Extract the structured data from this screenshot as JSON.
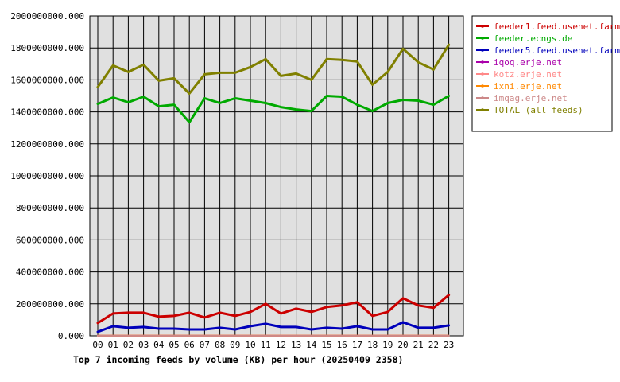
{
  "chart_data": {
    "type": "line",
    "title": "Top 7 incoming feeds by volume (KB) per hour (20250409 2358)",
    "xlabel": "",
    "ylabel": "",
    "grid": true,
    "legend_position": "top-right",
    "ylim": [
      0,
      2000000000
    ],
    "yticks": [
      "0.000",
      "200000000.000",
      "400000000.000",
      "600000000.000",
      "800000000.000",
      "1000000000.000",
      "1200000000.000",
      "1400000000.000",
      "1600000000.000",
      "1800000000.000",
      "2000000000.000"
    ],
    "x": [
      "00",
      "01",
      "02",
      "03",
      "04",
      "05",
      "06",
      "07",
      "08",
      "09",
      "10",
      "11",
      "12",
      "13",
      "14",
      "15",
      "16",
      "17",
      "18",
      "19",
      "20",
      "21",
      "22",
      "23"
    ],
    "series": [
      {
        "name": "feeder1.feed.usenet.farm",
        "color": "#cc0000",
        "values": [
          80000000,
          140000000,
          145000000,
          145000000,
          120000000,
          125000000,
          145000000,
          115000000,
          145000000,
          125000000,
          150000000,
          200000000,
          140000000,
          170000000,
          150000000,
          180000000,
          190000000,
          210000000,
          125000000,
          150000000,
          235000000,
          190000000,
          175000000,
          255000000
        ]
      },
      {
        "name": "feeder.ecngs.de",
        "color": "#00aa00",
        "values": [
          1450000000,
          1490000000,
          1460000000,
          1495000000,
          1435000000,
          1445000000,
          1335000000,
          1485000000,
          1455000000,
          1485000000,
          1470000000,
          1455000000,
          1430000000,
          1415000000,
          1405000000,
          1500000000,
          1495000000,
          1445000000,
          1405000000,
          1455000000,
          1475000000,
          1470000000,
          1445000000,
          1500000000
        ]
      },
      {
        "name": "feeder5.feed.usenet.farm",
        "color": "#0000bb",
        "values": [
          25000000,
          60000000,
          50000000,
          55000000,
          45000000,
          45000000,
          40000000,
          40000000,
          50000000,
          40000000,
          60000000,
          75000000,
          55000000,
          55000000,
          40000000,
          50000000,
          45000000,
          60000000,
          40000000,
          40000000,
          85000000,
          50000000,
          50000000,
          65000000
        ]
      },
      {
        "name": "iqoq.erje.net",
        "color": "#aa00aa",
        "values": [
          1500000,
          1500000,
          1500000,
          1500000,
          1500000,
          1500000,
          1500000,
          1500000,
          1500000,
          1500000,
          1500000,
          1500000,
          1500000,
          1500000,
          1500000,
          1500000,
          1500000,
          1500000,
          1500000,
          1500000,
          1500000,
          1500000,
          1500000,
          1500000
        ]
      },
      {
        "name": "kotz.erje.net",
        "color": "#ff8888",
        "values": [
          1000000,
          1000000,
          1000000,
          1000000,
          1000000,
          1000000,
          1000000,
          1000000,
          1000000,
          1000000,
          1000000,
          1000000,
          1000000,
          1000000,
          1000000,
          1000000,
          1000000,
          1000000,
          1000000,
          1000000,
          1000000,
          1000000,
          1000000,
          1000000
        ]
      },
      {
        "name": "ixni.erje.net",
        "color": "#ff8800",
        "values": [
          1000000,
          1000000,
          1000000,
          1000000,
          1000000,
          1000000,
          1000000,
          1000000,
          1000000,
          1000000,
          1000000,
          1000000,
          1000000,
          1000000,
          1000000,
          1000000,
          1000000,
          1000000,
          1000000,
          1000000,
          1000000,
          1000000,
          1000000,
          1000000
        ]
      },
      {
        "name": "imqag.erje.net",
        "color": "#cc8888",
        "values": [
          500000,
          500000,
          500000,
          500000,
          500000,
          500000,
          500000,
          500000,
          500000,
          500000,
          500000,
          500000,
          500000,
          500000,
          500000,
          500000,
          500000,
          500000,
          500000,
          500000,
          500000,
          500000,
          500000,
          500000
        ]
      },
      {
        "name": "TOTAL (all feeds)",
        "color": "#808000",
        "values": [
          1555000000,
          1690000000,
          1650000000,
          1695000000,
          1595000000,
          1610000000,
          1515000000,
          1635000000,
          1645000000,
          1645000000,
          1680000000,
          1730000000,
          1625000000,
          1640000000,
          1600000000,
          1730000000,
          1725000000,
          1715000000,
          1570000000,
          1650000000,
          1795000000,
          1710000000,
          1665000000,
          1820000000
        ]
      }
    ]
  }
}
